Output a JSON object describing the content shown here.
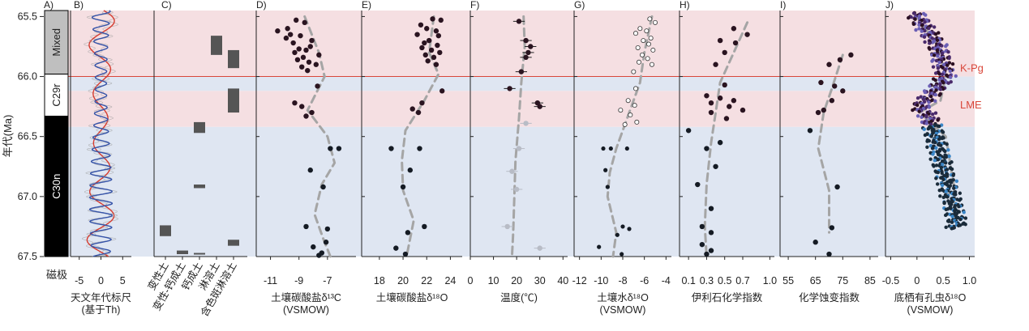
{
  "figure": {
    "y_axis_label": "年代(Ma)",
    "polarity_label": "磁极",
    "y_ticks": [
      "65.5",
      "66.0",
      "66.5",
      "67.0",
      "67.5"
    ],
    "ylim": [
      65.45,
      67.5
    ],
    "events": [
      {
        "label": "K-Pg",
        "age": 66.0,
        "color": "#d9473a"
      },
      {
        "label": "LME",
        "age": 66.28,
        "color": "#d9473a"
      }
    ],
    "background_bands": [
      {
        "from": 65.45,
        "to": 66.0,
        "color": "#f5dfe2"
      },
      {
        "from": 66.0,
        "to": 66.12,
        "color": "#dfe6f2"
      },
      {
        "from": 66.12,
        "to": 66.42,
        "color": "#f5dfe2"
      },
      {
        "from": 66.42,
        "to": 67.5,
        "color": "#dfe6f2"
      }
    ],
    "magnetostratigraphy": [
      {
        "label": "Mixed",
        "from": 65.45,
        "to": 65.98,
        "color": "#bfbfbf",
        "text_dark": true
      },
      {
        "label": "C29r",
        "from": 65.98,
        "to": 66.33,
        "color": "#ffffff",
        "text_dark": true
      },
      {
        "label": "C30n",
        "from": 66.33,
        "to": 67.5,
        "color": "#000000",
        "text_dark": false
      }
    ],
    "panel_letters": [
      "A)",
      "B)",
      "C)",
      "D)",
      "E)",
      "F)",
      "G)",
      "H)",
      "I)",
      "J)"
    ]
  },
  "chart_data": [
    {
      "id": "B",
      "type": "line",
      "xlabel": "天文年代标尺",
      "xlabel2": "(基于Th)",
      "xticks": [
        "-5",
        "0",
        "5"
      ],
      "xtick_values": [
        -5,
        0,
        5
      ],
      "xlim": [
        -7,
        7
      ],
      "series": [
        {
          "color": "#d63b2f",
          "amp": 3.2,
          "period": 0.405,
          "phase": 0.2
        },
        {
          "color": "#3553a8",
          "amp": 2.6,
          "period": 0.1,
          "phase": 1.1
        }
      ]
    },
    {
      "id": "C",
      "type": "bar",
      "categories": [
        "变性土",
        "变性-钙成土",
        "钙成土",
        "淋溶土",
        "含色斑淋溶土"
      ],
      "intervals": [
        {
          "cat": 0,
          "from": 67.24,
          "to": 67.33
        },
        {
          "cat": 1,
          "from": 67.45,
          "to": 67.48
        },
        {
          "cat": 2,
          "from": 66.38,
          "to": 66.47
        },
        {
          "cat": 2,
          "from": 66.9,
          "to": 66.93
        },
        {
          "cat": 2,
          "from": 67.47,
          "to": 67.48
        },
        {
          "cat": 3,
          "from": 65.66,
          "to": 65.82
        },
        {
          "cat": 4,
          "from": 65.78,
          "to": 65.93
        },
        {
          "cat": 4,
          "from": 66.1,
          "to": 66.3
        },
        {
          "cat": 4,
          "from": 67.36,
          "to": 67.41
        }
      ]
    },
    {
      "id": "D",
      "type": "scatter",
      "xlabel": "土壤碳酸盐δ¹³C",
      "xlabel2": "(VSMOW)",
      "xticks": [
        "-11",
        "-9",
        "-7"
      ],
      "xtick_values": [
        -11,
        -9,
        -7
      ],
      "xlim": [
        -12,
        -5
      ],
      "points": [
        [
          -9.2,
          65.53
        ],
        [
          -8.6,
          65.55
        ],
        [
          -9.8,
          65.6
        ],
        [
          -10.5,
          65.62
        ],
        [
          -9.6,
          65.65
        ],
        [
          -8.9,
          65.66
        ],
        [
          -9.9,
          65.68
        ],
        [
          -8.1,
          65.7
        ],
        [
          -9.4,
          65.72
        ],
        [
          -8.2,
          65.75
        ],
        [
          -9.0,
          65.77
        ],
        [
          -8.5,
          65.78
        ],
        [
          -9.3,
          65.8
        ],
        [
          -7.6,
          65.82
        ],
        [
          -8.7,
          65.84
        ],
        [
          -9.1,
          65.86
        ],
        [
          -8.3,
          65.88
        ],
        [
          -7.8,
          65.9
        ],
        [
          -8.8,
          65.92
        ],
        [
          -8.4,
          65.95
        ],
        [
          -7.7,
          66.08
        ],
        [
          -9.3,
          66.22
        ],
        [
          -8.8,
          66.25
        ],
        [
          -8.1,
          66.3
        ],
        [
          -8.5,
          66.33
        ],
        [
          -6.8,
          66.6
        ],
        [
          -6.2,
          66.6
        ],
        [
          -8.2,
          66.78
        ],
        [
          -7.3,
          66.92
        ],
        [
          -8.5,
          67.25
        ],
        [
          -7.0,
          67.27
        ],
        [
          -7.1,
          67.38
        ],
        [
          -8.0,
          67.42
        ],
        [
          -7.4,
          67.47
        ],
        [
          -7.6,
          67.49
        ]
      ],
      "trend": [
        [
          -8.6,
          65.5
        ],
        [
          -7.6,
          65.8
        ],
        [
          -7.2,
          66.0
        ],
        [
          -8.4,
          66.28
        ],
        [
          -7.0,
          66.5
        ],
        [
          -6.5,
          66.72
        ],
        [
          -7.4,
          66.9
        ],
        [
          -7.9,
          67.15
        ],
        [
          -7.3,
          67.35
        ],
        [
          -6.8,
          67.5
        ]
      ]
    },
    {
      "id": "E",
      "type": "scatter",
      "xlabel": "土壤碳酸盐δ¹⁸O",
      "xticks": [
        "18",
        "20",
        "22",
        "24"
      ],
      "xtick_values": [
        18,
        20,
        22,
        24
      ],
      "xlim": [
        16.5,
        25
      ],
      "points": [
        [
          22.5,
          65.52
        ],
        [
          23.2,
          65.53
        ],
        [
          21.5,
          65.57
        ],
        [
          22.0,
          65.6
        ],
        [
          22.8,
          65.62
        ],
        [
          21.2,
          65.65
        ],
        [
          23.0,
          65.66
        ],
        [
          22.2,
          65.7
        ],
        [
          21.8,
          65.72
        ],
        [
          22.9,
          65.74
        ],
        [
          21.6,
          65.76
        ],
        [
          22.4,
          65.78
        ],
        [
          23.1,
          65.8
        ],
        [
          21.9,
          65.82
        ],
        [
          22.6,
          65.84
        ],
        [
          22.1,
          65.87
        ],
        [
          22.8,
          65.9
        ],
        [
          23.3,
          66.12
        ],
        [
          21.6,
          66.22
        ],
        [
          20.8,
          66.27
        ],
        [
          21.3,
          66.3
        ],
        [
          19.0,
          66.6
        ],
        [
          21.4,
          66.6
        ],
        [
          20.6,
          66.78
        ],
        [
          20.0,
          66.92
        ],
        [
          21.8,
          67.25
        ],
        [
          20.4,
          67.3
        ],
        [
          19.4,
          67.43
        ],
        [
          20.2,
          67.48
        ]
      ],
      "trend": [
        [
          22.6,
          65.5
        ],
        [
          22.2,
          65.8
        ],
        [
          23.0,
          65.98
        ],
        [
          21.8,
          66.2
        ],
        [
          20.2,
          66.45
        ],
        [
          19.9,
          66.7
        ],
        [
          20.0,
          66.95
        ],
        [
          20.9,
          67.2
        ],
        [
          20.3,
          67.5
        ]
      ]
    },
    {
      "id": "F",
      "type": "scatter",
      "xlabel": "温度(℃)",
      "xticks": [
        "0",
        "10",
        "20",
        "30",
        "40"
      ],
      "xtick_values": [
        0,
        10,
        20,
        30,
        40
      ],
      "xlim": [
        0,
        42
      ],
      "points": [
        [
          21,
          65.54
        ],
        [
          24,
          65.7
        ],
        [
          26,
          65.75
        ],
        [
          25,
          65.8
        ],
        [
          24,
          65.84
        ],
        [
          22,
          65.96
        ],
        [
          17,
          66.1
        ],
        [
          29,
          66.22
        ],
        [
          30,
          66.25
        ],
        [
          24,
          66.39
        ],
        [
          21,
          66.6
        ],
        [
          18,
          66.79
        ],
        [
          20,
          66.94
        ],
        [
          16,
          67.25
        ],
        [
          30,
          67.43
        ]
      ],
      "trend": [
        [
          23,
          65.5
        ],
        [
          23.5,
          65.75
        ],
        [
          22,
          66.05
        ],
        [
          21,
          66.35
        ],
        [
          19.5,
          66.7
        ],
        [
          19,
          67.0
        ],
        [
          18.5,
          67.3
        ],
        [
          18,
          67.5
        ]
      ]
    },
    {
      "id": "G",
      "type": "scatter",
      "xlabel": "土壤水δ¹⁸O",
      "xlabel2": "(VSMOW)",
      "xticks": [
        "-12",
        "-10",
        "-8",
        "-6",
        "-4"
      ],
      "xtick_values": [
        -12,
        -10,
        -8,
        -6,
        -4
      ],
      "xlim": [
        -12.5,
        -3.5
      ],
      "points": [
        [
          -5.5,
          65.52
        ],
        [
          -5.0,
          65.55
        ],
        [
          -6.4,
          65.6
        ],
        [
          -5.8,
          65.62
        ],
        [
          -6.8,
          65.64
        ],
        [
          -5.4,
          65.68
        ],
        [
          -6.1,
          65.7
        ],
        [
          -5.6,
          65.73
        ],
        [
          -6.6,
          65.76
        ],
        [
          -5.2,
          65.78
        ],
        [
          -6.2,
          65.82
        ],
        [
          -5.7,
          65.85
        ],
        [
          -6.5,
          65.88
        ],
        [
          -5.3,
          65.9
        ],
        [
          -7.0,
          65.96
        ],
        [
          -6.8,
          66.1
        ],
        [
          -7.5,
          66.2
        ],
        [
          -6.9,
          66.24
        ],
        [
          -8.2,
          66.28
        ],
        [
          -7.3,
          66.32
        ],
        [
          -6.7,
          66.38
        ],
        [
          -7.8,
          66.4
        ],
        [
          -9.8,
          66.6
        ],
        [
          -9.1,
          66.6
        ],
        [
          -7.6,
          66.6
        ],
        [
          -9.6,
          66.78
        ],
        [
          -9.4,
          66.92
        ],
        [
          -8.0,
          67.25
        ],
        [
          -7.4,
          67.27
        ],
        [
          -8.5,
          67.32
        ],
        [
          -10.2,
          67.42
        ],
        [
          -8.1,
          67.48
        ]
      ],
      "trend": [
        [
          -5.3,
          65.5
        ],
        [
          -6.0,
          65.8
        ],
        [
          -6.4,
          66.05
        ],
        [
          -7.4,
          66.3
        ],
        [
          -8.6,
          66.6
        ],
        [
          -9.2,
          66.8
        ],
        [
          -9.4,
          67.0
        ],
        [
          -8.6,
          67.3
        ],
        [
          -8.9,
          67.5
        ]
      ]
    },
    {
      "id": "H",
      "type": "scatter",
      "xlabel": "伊利石化学指数",
      "xticks": [
        "0.1",
        "0.3",
        "0.5",
        "0.7",
        "1.0"
      ],
      "xtick_values": [
        0.1,
        0.3,
        0.5,
        0.7,
        1.0
      ],
      "xlim": [
        0.0,
        1.05
      ],
      "points": [
        [
          0.6,
          65.6
        ],
        [
          0.75,
          65.65
        ],
        [
          0.45,
          65.7
        ],
        [
          0.62,
          65.72
        ],
        [
          0.5,
          65.8
        ],
        [
          0.4,
          65.9
        ],
        [
          0.5,
          66.07
        ],
        [
          0.3,
          66.16
        ],
        [
          0.45,
          66.18
        ],
        [
          0.6,
          66.2
        ],
        [
          0.35,
          66.22
        ],
        [
          0.55,
          66.25
        ],
        [
          0.7,
          66.28
        ],
        [
          0.35,
          66.3
        ],
        [
          0.52,
          66.35
        ],
        [
          0.1,
          66.45
        ],
        [
          0.45,
          66.55
        ],
        [
          0.3,
          66.6
        ],
        [
          0.4,
          66.75
        ],
        [
          0.2,
          66.9
        ],
        [
          0.35,
          67.1
        ],
        [
          0.25,
          67.25
        ],
        [
          0.35,
          67.3
        ],
        [
          0.25,
          67.4
        ],
        [
          0.35,
          67.45
        ],
        [
          0.3,
          67.48
        ]
      ],
      "trend": [
        [
          0.75,
          65.55
        ],
        [
          0.6,
          65.8
        ],
        [
          0.45,
          66.05
        ],
        [
          0.4,
          66.3
        ],
        [
          0.35,
          66.55
        ],
        [
          0.3,
          66.9
        ],
        [
          0.28,
          67.25
        ],
        [
          0.3,
          67.5
        ]
      ]
    },
    {
      "id": "I",
      "type": "scatter",
      "xlabel": "化学蚀变指数",
      "xticks": [
        "55",
        "65",
        "75",
        "85"
      ],
      "xtick_values": [
        55,
        65,
        75,
        85
      ],
      "xlim": [
        52,
        88
      ],
      "points": [
        [
          78,
          65.82
        ],
        [
          74,
          65.86
        ],
        [
          70,
          65.9
        ],
        [
          67,
          66.05
        ],
        [
          72,
          66.08
        ],
        [
          75,
          66.12
        ],
        [
          71,
          66.2
        ],
        [
          68,
          66.28
        ],
        [
          66,
          66.3
        ],
        [
          63,
          66.45
        ],
        [
          73,
          66.92
        ],
        [
          71,
          67.26
        ],
        [
          65,
          67.38
        ],
        [
          70,
          67.48
        ]
      ],
      "trend": [
        [
          75,
          65.82
        ],
        [
          71,
          66.1
        ],
        [
          68,
          66.3
        ],
        [
          66,
          66.6
        ],
        [
          70,
          66.95
        ],
        [
          70,
          67.3
        ]
      ]
    },
    {
      "id": "J",
      "type": "scatter",
      "xlabel": "底栖有孔虫δ¹⁸O",
      "xlabel2": "(VSMOW)",
      "xticks": [
        "-0.5",
        "0",
        "0.5",
        "1.0"
      ],
      "xtick_values": [
        -0.5,
        0,
        0.5,
        1.0
      ],
      "xlim": [
        -0.6,
        1.1
      ],
      "trend": [
        [
          0.0,
          65.5
        ],
        [
          0.4,
          65.75
        ],
        [
          0.55,
          66.0
        ],
        [
          0.45,
          66.2
        ],
        [
          0.05,
          66.3
        ],
        [
          0.55,
          66.5
        ],
        [
          0.7,
          66.9
        ],
        [
          0.75,
          67.2
        ]
      ]
    }
  ]
}
